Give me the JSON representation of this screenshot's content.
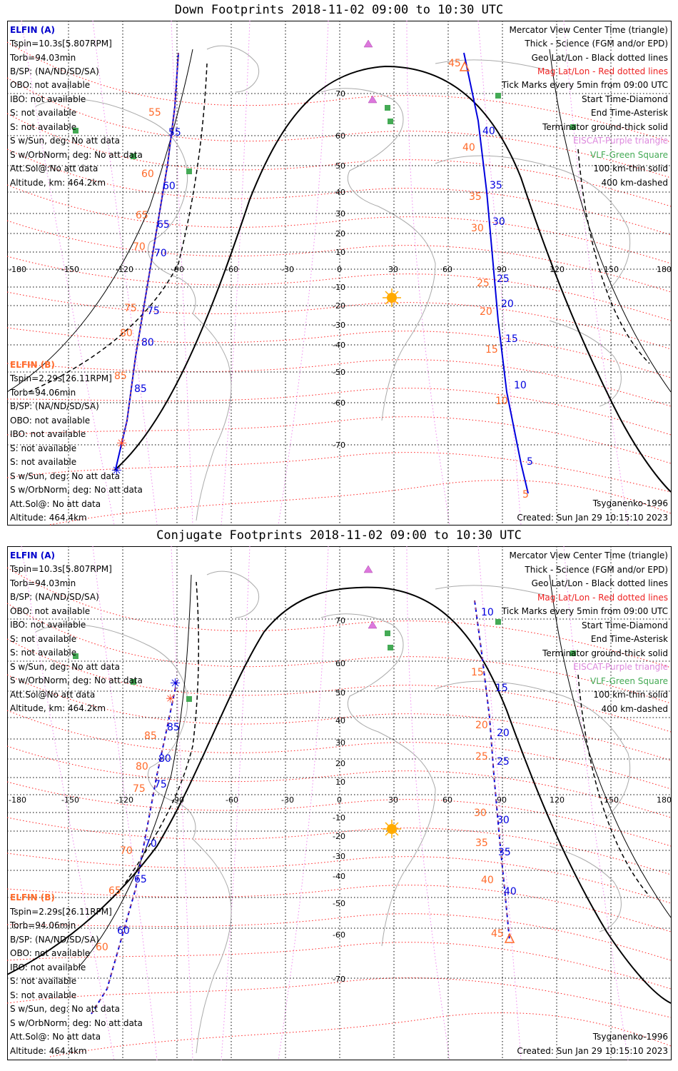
{
  "colors": {
    "elfin_label": "#0000cc",
    "mag_grid": "#ff2020",
    "geo_grid": "#000000",
    "purple": "#dd77dd",
    "green": "#44aa55",
    "sun": "#ffaa00",
    "blue_track": "#0000dd",
    "orange_track": "#ff6a2a",
    "coast": "#aaaaaa"
  },
  "lon_ticks": [
    "-180",
    "-150",
    "-120",
    "-90",
    "-60",
    "-30",
    "0",
    "30",
    "60",
    "90",
    "120",
    "150",
    "180"
  ],
  "lat_ticks_down": [
    "70",
    "60",
    "50",
    "40",
    "30",
    "20",
    "10",
    "0",
    "-10",
    "-20",
    "-30",
    "-40",
    "-50",
    "-60",
    "-70"
  ],
  "lat_ticks_conj": [
    "70",
    "60",
    "50",
    "40",
    "30",
    "20",
    "10",
    "0",
    "-10",
    "-20",
    "-30",
    "-40",
    "-50",
    "-60",
    "-70"
  ],
  "panels": [
    {
      "id": "down",
      "title": "Down Footprints 2018-11-02 09:00 to 10:30 UTC",
      "elfin_a": {
        "name": "ELFIN (A)",
        "lines": [
          "Tspin=10.3s[5.807RPM]",
          "Torb=94.03min",
          "B/SP: (NA/ND/SD/SA)",
          "OBO: not available",
          "IBO: not available",
          "S: not available",
          "S: not available",
          "S w/Sun, deg: No att data",
          "S w/OrbNorm, deg: No att data",
          "Att.Sol@:No att data",
          "Altitude, km: 464.2km"
        ]
      },
      "elfin_b": {
        "name": "ELFIN (B)",
        "lines": [
          "Tspin=2.29s[26.11RPM]",
          "Torb=94.06min",
          "B/SP: (NA/ND/SD/SA)",
          "OBO: not available",
          "IBO: not available",
          "S: not available",
          "S: not available",
          "S w/Sun, deg: No att data",
          "S w/OrbNorm, deg: No att data",
          "Att.Sol@: No att data",
          "Altitude: 464.4km"
        ]
      },
      "legend": [
        {
          "text": "Mercator View Center Time (triangle)",
          "color": "#000000"
        },
        {
          "text": "Thick - Science (FGM and/or EPD)",
          "color": "#000000"
        },
        {
          "text": "Geo Lat/Lon - Black dotted lines",
          "color": "#000000"
        },
        {
          "text": "Mag Lat/Lon - Red dotted lines",
          "color": "#ee2222"
        },
        {
          "text": "Tick Marks every 5min from 09:00 UTC",
          "color": "#000000"
        },
        {
          "text": "Start Time-Diamond",
          "color": "#000000"
        },
        {
          "text": "End Time-Asterisk",
          "color": "#000000"
        },
        {
          "text": "Terminator ground-thick solid",
          "color": "#000000"
        },
        {
          "text": "EISCAT-Purple triangle",
          "color": "#dd88dd"
        },
        {
          "text": "VLF-Green Square",
          "color": "#44aa55"
        },
        {
          "text": "100 km-thin solid",
          "color": "#000000"
        },
        {
          "text": "400 km-dashed",
          "color": "#000000"
        }
      ],
      "model": "Tsyganenko-1996",
      "created": "Created: Sun Jan 29 10:15:10 2023",
      "track_a_labels_blue": [
        "55",
        "60",
        "65",
        "70",
        "75",
        "80",
        "85"
      ],
      "track_a_labels_orange": [
        "55",
        "60",
        "65",
        "70",
        "75",
        "80",
        "85"
      ],
      "track_b_labels_blue": [
        "40",
        "35",
        "30",
        "25",
        "20",
        "15",
        "10",
        "5"
      ],
      "track_b_labels_orange": [
        "45",
        "40",
        "35",
        "30",
        "25",
        "20",
        "15",
        "10",
        "5"
      ]
    },
    {
      "id": "conj",
      "title": "Conjugate Footprints 2018-11-02 09:00 to 10:30 UTC",
      "elfin_a": {
        "name": "ELFIN (A)",
        "lines": [
          "Tspin=10.3s[5.807RPM]",
          "Torb=94.03min",
          "B/SP: (NA/ND/SD/SA)",
          "OBO: not available",
          "IBO: not available",
          "S: not available",
          "S: not available",
          "S w/Sun, deg: No att data",
          "S w/OrbNorm, deg: No att data",
          "Att.Sol@No att data",
          "Altitude, km: 464.2km"
        ]
      },
      "elfin_b": {
        "name": "ELFIN (B)",
        "lines": [
          "Tspin=2.29s[26.11RPM]",
          "Torb=94.06min",
          "B/SP: (NA/ND/SD/SA)",
          "OBO: not available",
          "IBO: not available",
          "S: not available",
          "S: not available",
          "S w/Sun, deg: No att data",
          "S w/OrbNorm, deg: No att data",
          "Att.Sol@: No att data",
          "Altitude: 464.4km"
        ]
      },
      "legend": [
        {
          "text": "Mercator View Center Time (triangle)",
          "color": "#000000"
        },
        {
          "text": "Thick - Science (FGM and/or EPD)",
          "color": "#000000"
        },
        {
          "text": "Geo Lat/Lon - Black dotted lines",
          "color": "#000000"
        },
        {
          "text": "Mag Lat/Lon - Red dotted lines",
          "color": "#ee2222"
        },
        {
          "text": "Tick Marks every 5min from 09:00 UTC",
          "color": "#000000"
        },
        {
          "text": "Start Time-Diamond",
          "color": "#000000"
        },
        {
          "text": "End Time-Asterisk",
          "color": "#000000"
        },
        {
          "text": "Terminator ground-thick solid",
          "color": "#000000"
        },
        {
          "text": "EISCAT-Purple triangle",
          "color": "#dd88dd"
        },
        {
          "text": "VLF-Green Square",
          "color": "#44aa55"
        },
        {
          "text": "100 km-thin solid",
          "color": "#000000"
        },
        {
          "text": "400 km-dashed",
          "color": "#000000"
        }
      ],
      "model": "Tsyganenko-1996",
      "created": "Created: Sun Jan 29 10:15:10 2023",
      "track_a_labels_blue": [
        "85",
        "80",
        "75",
        "70",
        "65",
        "60"
      ],
      "track_a_labels_orange": [
        "85",
        "80",
        "75",
        "70",
        "65",
        "60"
      ],
      "track_b_labels_blue": [
        "10",
        "15",
        "20",
        "25",
        "30",
        "35",
        "40"
      ],
      "track_b_labels_orange": [
        "15",
        "20",
        "25",
        "30",
        "35",
        "40",
        "45"
      ]
    }
  ]
}
